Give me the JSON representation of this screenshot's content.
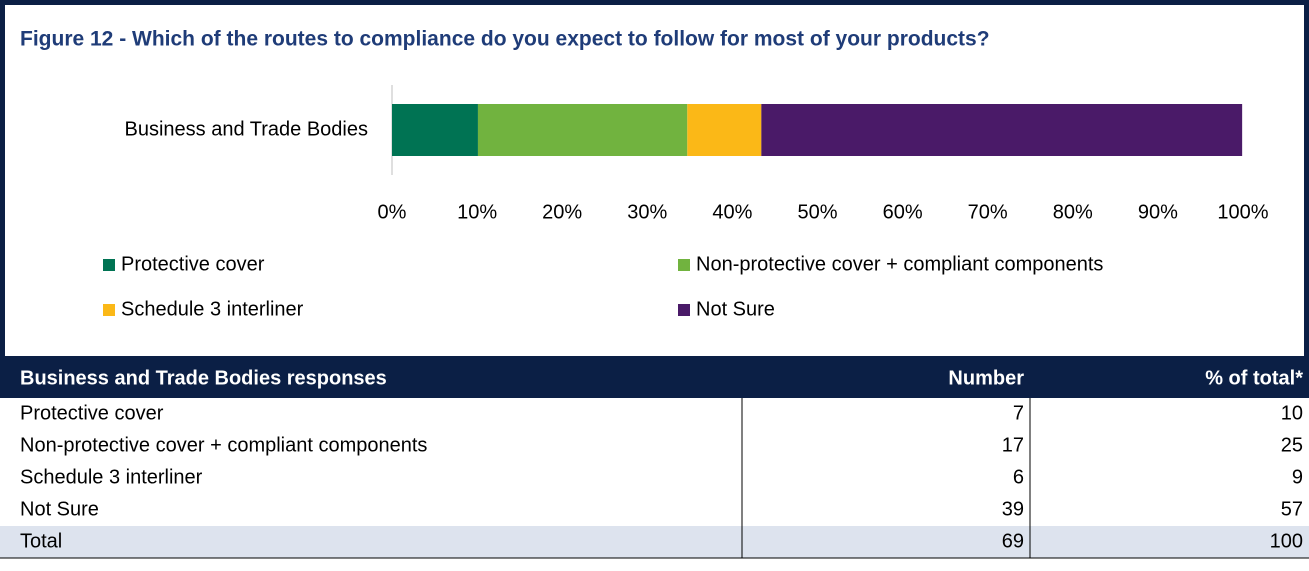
{
  "chart_data": {
    "type": "stacked-bar-horizontal",
    "title": "Figure 12 - Which of the routes to compliance do you expect to follow for most of your products?",
    "categories": [
      "Business and Trade Bodies"
    ],
    "series": [
      {
        "name": "Protective cover",
        "color": "#007353",
        "values": [
          10.1
        ]
      },
      {
        "name": "Non-protective cover + compliant components",
        "color": "#71b33f",
        "values": [
          24.6
        ]
      },
      {
        "name": "Schedule 3 interliner",
        "color": "#fbb817",
        "values": [
          8.7
        ]
      },
      {
        "name": "Not Sure",
        "color": "#4a1a68",
        "values": [
          56.5
        ]
      }
    ],
    "xlim": [
      0,
      100
    ],
    "xticks": [
      {
        "value": 0,
        "label": "0%"
      },
      {
        "value": 10,
        "label": "10%"
      },
      {
        "value": 20,
        "label": "20%"
      },
      {
        "value": 30,
        "label": "30%"
      },
      {
        "value": 40,
        "label": "40%"
      },
      {
        "value": 50,
        "label": "50%"
      },
      {
        "value": 60,
        "label": "60%"
      },
      {
        "value": 70,
        "label": "70%"
      },
      {
        "value": 80,
        "label": "80%"
      },
      {
        "value": 90,
        "label": "90%"
      },
      {
        "value": 100,
        "label": "100%"
      }
    ],
    "legend": "bottom"
  },
  "table": {
    "header": [
      "Business and Trade Bodies responses",
      "Number",
      "% of total*"
    ],
    "rows": [
      [
        "Protective cover",
        7,
        10
      ],
      [
        "Non-protective cover + compliant components",
        17,
        25
      ],
      [
        "Schedule 3 interliner",
        6,
        9
      ],
      [
        "Not Sure",
        39,
        57
      ],
      [
        "Total",
        69,
        100
      ]
    ]
  }
}
